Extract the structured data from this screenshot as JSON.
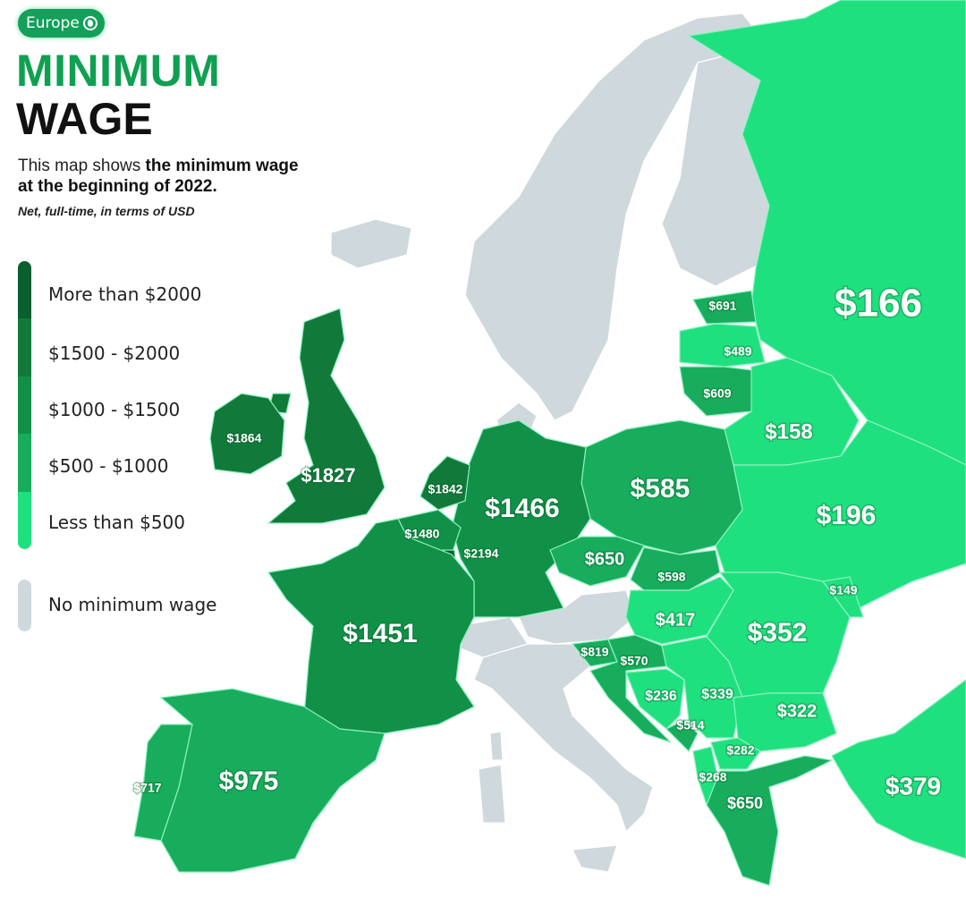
{
  "header": {
    "badge": "Europe",
    "title_line1": "MINIMUM",
    "title_line2": "WAGE",
    "desc_plain": "This map shows ",
    "desc_bold": "the minimum wage at the beginning of 2022.",
    "note": "Net, full-time, in terms of USD"
  },
  "legend": {
    "items": [
      {
        "label": "More than $2000",
        "color": "#0b5e2e"
      },
      {
        "label": "$1500 - $2000",
        "color": "#117a3a"
      },
      {
        "label": "$1000 - $1500",
        "color": "#119148"
      },
      {
        "label": "$500 - $1000",
        "color": "#17ad5c"
      },
      {
        "label": "Less than $500",
        "color": "#1fe07f"
      }
    ],
    "none": {
      "label": "No minimum wage",
      "color": "#cfd8dc"
    }
  },
  "map": {
    "border_color": "#8ef0c0",
    "regions": {
      "russia": {
        "label": "$166",
        "tier": 4
      },
      "estonia": {
        "label": "$691",
        "tier": 3
      },
      "latvia": {
        "label": "$489",
        "tier": 4
      },
      "lithuania": {
        "label": "$609",
        "tier": 3
      },
      "belarus": {
        "label": "$158",
        "tier": 4
      },
      "ukraine": {
        "label": "$196",
        "tier": 4
      },
      "poland": {
        "label": "$585",
        "tier": 3
      },
      "germany": {
        "label": "$1466",
        "tier": 2
      },
      "netherlands": {
        "label": "$1842",
        "tier": 1
      },
      "belgium": {
        "label": "$1480",
        "tier": 2
      },
      "luxembourg": {
        "label": "$2194",
        "tier": 0
      },
      "france": {
        "label": "$1451",
        "tier": 2
      },
      "uk": {
        "label": "$1827",
        "tier": 1
      },
      "ireland": {
        "label": "$1864",
        "tier": 1
      },
      "czechia": {
        "label": "$650",
        "tier": 3
      },
      "slovakia": {
        "label": "$598",
        "tier": 3
      },
      "hungary": {
        "label": "$417",
        "tier": 4
      },
      "moldova": {
        "label": "$149",
        "tier": 4
      },
      "romania": {
        "label": "$352",
        "tier": 4
      },
      "slovenia": {
        "label": "$819",
        "tier": 3
      },
      "croatia": {
        "label": "$570",
        "tier": 3
      },
      "bosnia": {
        "label": "$236",
        "tier": 4
      },
      "serbia": {
        "label": "$339",
        "tier": 4
      },
      "bulgaria": {
        "label": "$322",
        "tier": 4
      },
      "montenegro": {
        "label": "$514",
        "tier": 3
      },
      "macedonia": {
        "label": "$282",
        "tier": 4
      },
      "albania": {
        "label": "$268",
        "tier": 4
      },
      "greece": {
        "label": "$650",
        "tier": 3
      },
      "turkey": {
        "label": "$379",
        "tier": 4
      },
      "spain": {
        "label": "$975",
        "tier": 3
      },
      "portugal": {
        "label": "$717",
        "tier": 3
      }
    }
  }
}
